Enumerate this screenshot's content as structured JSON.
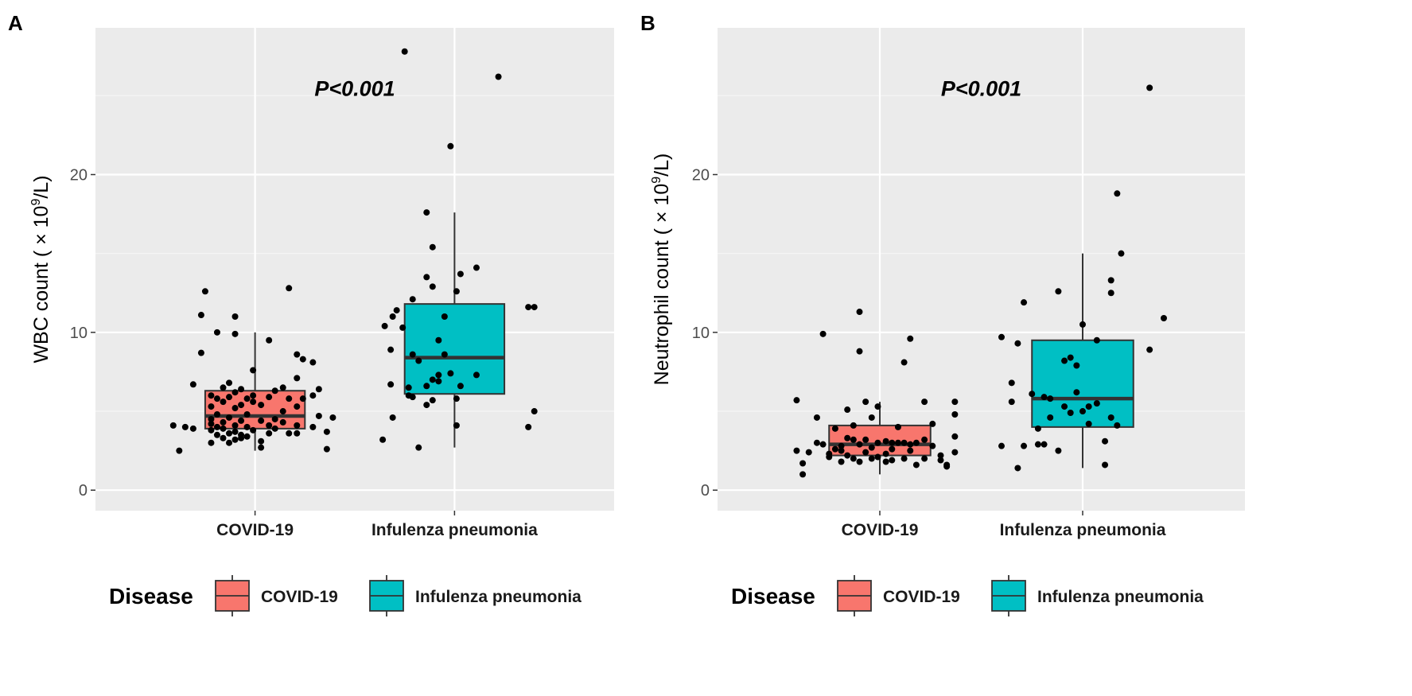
{
  "legend": {
    "title": "Disease",
    "items": [
      {
        "label": "COVID-19",
        "color": "#F8766D"
      },
      {
        "label": "Infulenza pneumonia",
        "color": "#00BFC4"
      }
    ]
  },
  "chart_data": [
    {
      "panel_label": "A",
      "type": "boxplot",
      "ylabel_prefix": "WBC count ( × 10",
      "ylabel_sup": "9",
      "ylabel_suffix": "/L)",
      "annotation": "P<0.001",
      "ylim": [
        -1.3,
        29.3
      ],
      "yticks": [
        0,
        10,
        20
      ],
      "ytick_labels": [
        "0",
        "10",
        "20"
      ],
      "categories": [
        "COVID-19",
        "Infulenza pneumonia"
      ],
      "boxes": [
        {
          "category": "COVID-19",
          "color": "#F8766D",
          "q1": 3.9,
          "median": 4.7,
          "q3": 6.3,
          "whisker_low": 2.5,
          "whisker_high": 10.0
        },
        {
          "category": "Infulenza pneumonia",
          "color": "#00BFC4",
          "q1": 6.1,
          "median": 8.4,
          "q3": 11.8,
          "whisker_low": 2.7,
          "whisker_high": 17.6
        }
      ],
      "points": [
        {
          "category": "COVID-19",
          "x_offset": -0.41,
          "values": [
            4.1
          ]
        },
        {
          "category": "COVID-19",
          "x_offset": -0.38,
          "values": [
            2.5
          ]
        },
        {
          "category": "COVID-19",
          "x_offset": -0.35,
          "values": [
            4.0
          ]
        },
        {
          "category": "COVID-19",
          "x_offset": -0.31,
          "values": [
            3.9,
            6.7
          ]
        },
        {
          "category": "COVID-19",
          "x_offset": -0.27,
          "values": [
            11.1,
            8.7
          ]
        },
        {
          "category": "COVID-19",
          "x_offset": -0.25,
          "values": [
            12.6
          ]
        },
        {
          "category": "COVID-19",
          "x_offset": -0.22,
          "values": [
            3.0,
            4.2,
            5.3,
            4.5,
            3.8,
            6.0
          ]
        },
        {
          "category": "COVID-19",
          "x_offset": -0.19,
          "values": [
            10.0,
            3.5,
            4.0,
            5.8,
            4.8
          ]
        },
        {
          "category": "COVID-19",
          "x_offset": -0.16,
          "values": [
            6.5,
            3.3,
            5.6,
            3.9,
            4.3
          ]
        },
        {
          "category": "COVID-19",
          "x_offset": -0.13,
          "values": [
            3.0,
            5.9,
            6.8,
            4.6,
            3.6
          ]
        },
        {
          "category": "COVID-19",
          "x_offset": -0.1,
          "values": [
            11.0,
            9.9,
            3.2,
            5.2,
            4.1,
            3.7,
            6.2
          ]
        },
        {
          "category": "COVID-19",
          "x_offset": -0.07,
          "values": [
            5.4,
            3.5,
            4.4,
            6.4,
            3.3
          ]
        },
        {
          "category": "COVID-19",
          "x_offset": -0.04,
          "values": [
            4.0,
            5.8,
            3.4,
            4.8
          ]
        },
        {
          "category": "COVID-19",
          "x_offset": -0.01,
          "values": [
            7.6,
            5.6,
            3.8,
            6.0
          ]
        },
        {
          "category": "COVID-19",
          "x_offset": 0.03,
          "values": [
            4.4,
            3.1,
            5.4,
            2.7
          ]
        },
        {
          "category": "COVID-19",
          "x_offset": 0.07,
          "values": [
            9.5,
            4.1,
            5.9,
            3.6
          ]
        },
        {
          "category": "COVID-19",
          "x_offset": 0.1,
          "values": [
            4.5,
            6.3,
            3.9
          ]
        },
        {
          "category": "COVID-19",
          "x_offset": 0.14,
          "values": [
            6.5,
            5.0,
            4.3
          ]
        },
        {
          "category": "COVID-19",
          "x_offset": 0.17,
          "values": [
            12.8,
            5.8,
            3.6
          ]
        },
        {
          "category": "COVID-19",
          "x_offset": 0.21,
          "values": [
            8.6,
            5.3,
            4.1,
            7.1,
            3.6
          ]
        },
        {
          "category": "COVID-19",
          "x_offset": 0.24,
          "values": [
            8.3,
            5.8
          ]
        },
        {
          "category": "COVID-19",
          "x_offset": 0.29,
          "values": [
            8.1,
            6.0,
            4.0
          ]
        },
        {
          "category": "COVID-19",
          "x_offset": 0.32,
          "values": [
            6.4,
            4.7
          ]
        },
        {
          "category": "COVID-19",
          "x_offset": 0.36,
          "values": [
            3.7,
            2.6
          ]
        },
        {
          "category": "COVID-19",
          "x_offset": 0.39,
          "values": [
            4.6
          ]
        },
        {
          "category": "Infulenza pneumonia",
          "x_offset": -0.36,
          "values": [
            3.2
          ]
        },
        {
          "category": "Infulenza pneumonia",
          "x_offset": -0.35,
          "values": [
            10.4
          ]
        },
        {
          "category": "Infulenza pneumonia",
          "x_offset": -0.32,
          "values": [
            8.9,
            6.7
          ]
        },
        {
          "category": "Infulenza pneumonia",
          "x_offset": -0.31,
          "values": [
            11.0,
            4.6
          ]
        },
        {
          "category": "Infulenza pneumonia",
          "x_offset": -0.29,
          "values": [
            11.4
          ]
        },
        {
          "category": "Infulenza pneumonia",
          "x_offset": -0.26,
          "values": [
            10.3
          ]
        },
        {
          "category": "Infulenza pneumonia",
          "x_offset": -0.25,
          "values": [
            27.8
          ]
        },
        {
          "category": "Infulenza pneumonia",
          "x_offset": -0.23,
          "values": [
            6.0,
            6.5
          ]
        },
        {
          "category": "Infulenza pneumonia",
          "x_offset": -0.21,
          "values": [
            12.1,
            5.9,
            8.6
          ]
        },
        {
          "category": "Infulenza pneumonia",
          "x_offset": -0.18,
          "values": [
            2.7,
            8.2
          ]
        },
        {
          "category": "Infulenza pneumonia",
          "x_offset": -0.14,
          "values": [
            17.6,
            13.5,
            5.4,
            6.6
          ]
        },
        {
          "category": "Infulenza pneumonia",
          "x_offset": -0.11,
          "values": [
            15.4,
            12.9,
            7.0,
            5.7
          ]
        },
        {
          "category": "Infulenza pneumonia",
          "x_offset": -0.08,
          "values": [
            9.5,
            7.3,
            6.9
          ]
        },
        {
          "category": "Infulenza pneumonia",
          "x_offset": -0.05,
          "values": [
            11.0,
            8.6
          ]
        },
        {
          "category": "Infulenza pneumonia",
          "x_offset": -0.02,
          "values": [
            21.8,
            7.4
          ]
        },
        {
          "category": "Infulenza pneumonia",
          "x_offset": 0.01,
          "values": [
            4.1,
            12.6,
            5.8
          ]
        },
        {
          "category": "Infulenza pneumonia",
          "x_offset": 0.03,
          "values": [
            6.6,
            13.7
          ]
        },
        {
          "category": "Infulenza pneumonia",
          "x_offset": 0.11,
          "values": [
            7.3,
            14.1
          ]
        },
        {
          "category": "Infulenza pneumonia",
          "x_offset": 0.22,
          "values": [
            26.2
          ]
        },
        {
          "category": "Infulenza pneumonia",
          "x_offset": 0.37,
          "values": [
            11.6,
            4.0
          ]
        },
        {
          "category": "Infulenza pneumonia",
          "x_offset": 0.4,
          "values": [
            11.6,
            5.0
          ]
        }
      ]
    },
    {
      "panel_label": "B",
      "type": "boxplot",
      "ylabel_prefix": "Neutrophil count ( × 10",
      "ylabel_sup": "9",
      "ylabel_suffix": "/L)",
      "annotation": "P<0.001",
      "ylim": [
        -1.3,
        29.3
      ],
      "yticks": [
        0,
        10,
        20
      ],
      "ytick_labels": [
        "0",
        "10",
        "20"
      ],
      "categories": [
        "COVID-19",
        "Infulenza pneumonia"
      ],
      "boxes": [
        {
          "category": "COVID-19",
          "color": "#F8766D",
          "q1": 2.2,
          "median": 2.9,
          "q3": 4.1,
          "whisker_low": 1.0,
          "whisker_high": 5.6
        },
        {
          "category": "Infulenza pneumonia",
          "color": "#00BFC4",
          "q1": 4.0,
          "median": 5.8,
          "q3": 9.5,
          "whisker_low": 1.4,
          "whisker_high": 15.0
        }
      ],
      "points": [
        {
          "category": "COVID-19",
          "x_offset": -0.41,
          "values": [
            5.7,
            2.5
          ]
        },
        {
          "category": "COVID-19",
          "x_offset": -0.38,
          "values": [
            1.7,
            1.0
          ]
        },
        {
          "category": "COVID-19",
          "x_offset": -0.35,
          "values": [
            2.4
          ]
        },
        {
          "category": "COVID-19",
          "x_offset": -0.31,
          "values": [
            3.0,
            4.6
          ]
        },
        {
          "category": "COVID-19",
          "x_offset": -0.28,
          "values": [
            9.9,
            2.9
          ]
        },
        {
          "category": "COVID-19",
          "x_offset": -0.25,
          "values": [
            2.3,
            2.1
          ]
        },
        {
          "category": "COVID-19",
          "x_offset": -0.22,
          "values": [
            3.9,
            2.6
          ]
        },
        {
          "category": "COVID-19",
          "x_offset": -0.19,
          "values": [
            2.8,
            2.5,
            1.8
          ]
        },
        {
          "category": "COVID-19",
          "x_offset": -0.16,
          "values": [
            5.1,
            3.3,
            2.2
          ]
        },
        {
          "category": "COVID-19",
          "x_offset": -0.13,
          "values": [
            3.2,
            4.1,
            2.0
          ]
        },
        {
          "category": "COVID-19",
          "x_offset": -0.1,
          "values": [
            11.3,
            8.8,
            2.9,
            1.8
          ]
        },
        {
          "category": "COVID-19",
          "x_offset": -0.07,
          "values": [
            5.6,
            3.2,
            2.4
          ]
        },
        {
          "category": "COVID-19",
          "x_offset": -0.04,
          "values": [
            4.6,
            2.7,
            2.0
          ]
        },
        {
          "category": "COVID-19",
          "x_offset": -0.01,
          "values": [
            5.3,
            3.0,
            2.1
          ]
        },
        {
          "category": "COVID-19",
          "x_offset": 0.03,
          "values": [
            3.1,
            2.3,
            1.8
          ]
        },
        {
          "category": "COVID-19",
          "x_offset": 0.06,
          "values": [
            3.0,
            2.6,
            1.9
          ]
        },
        {
          "category": "COVID-19",
          "x_offset": 0.09,
          "values": [
            4.0,
            3.0
          ]
        },
        {
          "category": "COVID-19",
          "x_offset": 0.12,
          "values": [
            8.1,
            3.0,
            2.0
          ]
        },
        {
          "category": "COVID-19",
          "x_offset": 0.15,
          "values": [
            9.6,
            2.5,
            2.9
          ]
        },
        {
          "category": "COVID-19",
          "x_offset": 0.18,
          "values": [
            3.0,
            1.6
          ]
        },
        {
          "category": "COVID-19",
          "x_offset": 0.22,
          "values": [
            5.6,
            3.2,
            2.0
          ]
        },
        {
          "category": "COVID-19",
          "x_offset": 0.26,
          "values": [
            4.2,
            2.8
          ]
        },
        {
          "category": "COVID-19",
          "x_offset": 0.3,
          "values": [
            2.2,
            1.9
          ]
        },
        {
          "category": "COVID-19",
          "x_offset": 0.33,
          "values": [
            1.6,
            1.5
          ]
        },
        {
          "category": "COVID-19",
          "x_offset": 0.37,
          "values": [
            5.6,
            4.8,
            3.4,
            2.4
          ]
        },
        {
          "category": "Infulenza pneumonia",
          "x_offset": -0.4,
          "values": [
            9.7,
            2.8
          ]
        },
        {
          "category": "Infulenza pneumonia",
          "x_offset": -0.35,
          "values": [
            6.8,
            5.6
          ]
        },
        {
          "category": "Infulenza pneumonia",
          "x_offset": -0.32,
          "values": [
            9.3,
            1.4
          ]
        },
        {
          "category": "Infulenza pneumonia",
          "x_offset": -0.29,
          "values": [
            11.9,
            2.8
          ]
        },
        {
          "category": "Infulenza pneumonia",
          "x_offset": -0.25,
          "values": [
            6.1
          ]
        },
        {
          "category": "Infulenza pneumonia",
          "x_offset": -0.22,
          "values": [
            3.9,
            2.9
          ]
        },
        {
          "category": "Infulenza pneumonia",
          "x_offset": -0.19,
          "values": [
            5.9,
            2.9
          ]
        },
        {
          "category": "Infulenza pneumonia",
          "x_offset": -0.16,
          "values": [
            5.8,
            4.6
          ]
        },
        {
          "category": "Infulenza pneumonia",
          "x_offset": -0.12,
          "values": [
            12.6,
            2.5
          ]
        },
        {
          "category": "Infulenza pneumonia",
          "x_offset": -0.09,
          "values": [
            8.2,
            5.3
          ]
        },
        {
          "category": "Infulenza pneumonia",
          "x_offset": -0.06,
          "values": [
            8.4,
            4.9
          ]
        },
        {
          "category": "Infulenza pneumonia",
          "x_offset": -0.03,
          "values": [
            7.9,
            6.2
          ]
        },
        {
          "category": "Infulenza pneumonia",
          "x_offset": 0.0,
          "values": [
            10.5,
            5.0
          ]
        },
        {
          "category": "Infulenza pneumonia",
          "x_offset": 0.03,
          "values": [
            5.3,
            4.2
          ]
        },
        {
          "category": "Infulenza pneumonia",
          "x_offset": 0.07,
          "values": [
            9.5,
            5.5
          ]
        },
        {
          "category": "Infulenza pneumonia",
          "x_offset": 0.11,
          "values": [
            3.1,
            1.6
          ]
        },
        {
          "category": "Infulenza pneumonia",
          "x_offset": 0.14,
          "values": [
            13.3,
            12.5,
            4.6
          ]
        },
        {
          "category": "Infulenza pneumonia",
          "x_offset": 0.17,
          "values": [
            18.8,
            4.1
          ]
        },
        {
          "category": "Infulenza pneumonia",
          "x_offset": 0.19,
          "values": [
            15.0
          ]
        },
        {
          "category": "Infulenza pneumonia",
          "x_offset": 0.33,
          "values": [
            25.5,
            8.9
          ]
        },
        {
          "category": "Infulenza pneumonia",
          "x_offset": 0.4,
          "values": [
            10.9
          ]
        }
      ]
    }
  ]
}
